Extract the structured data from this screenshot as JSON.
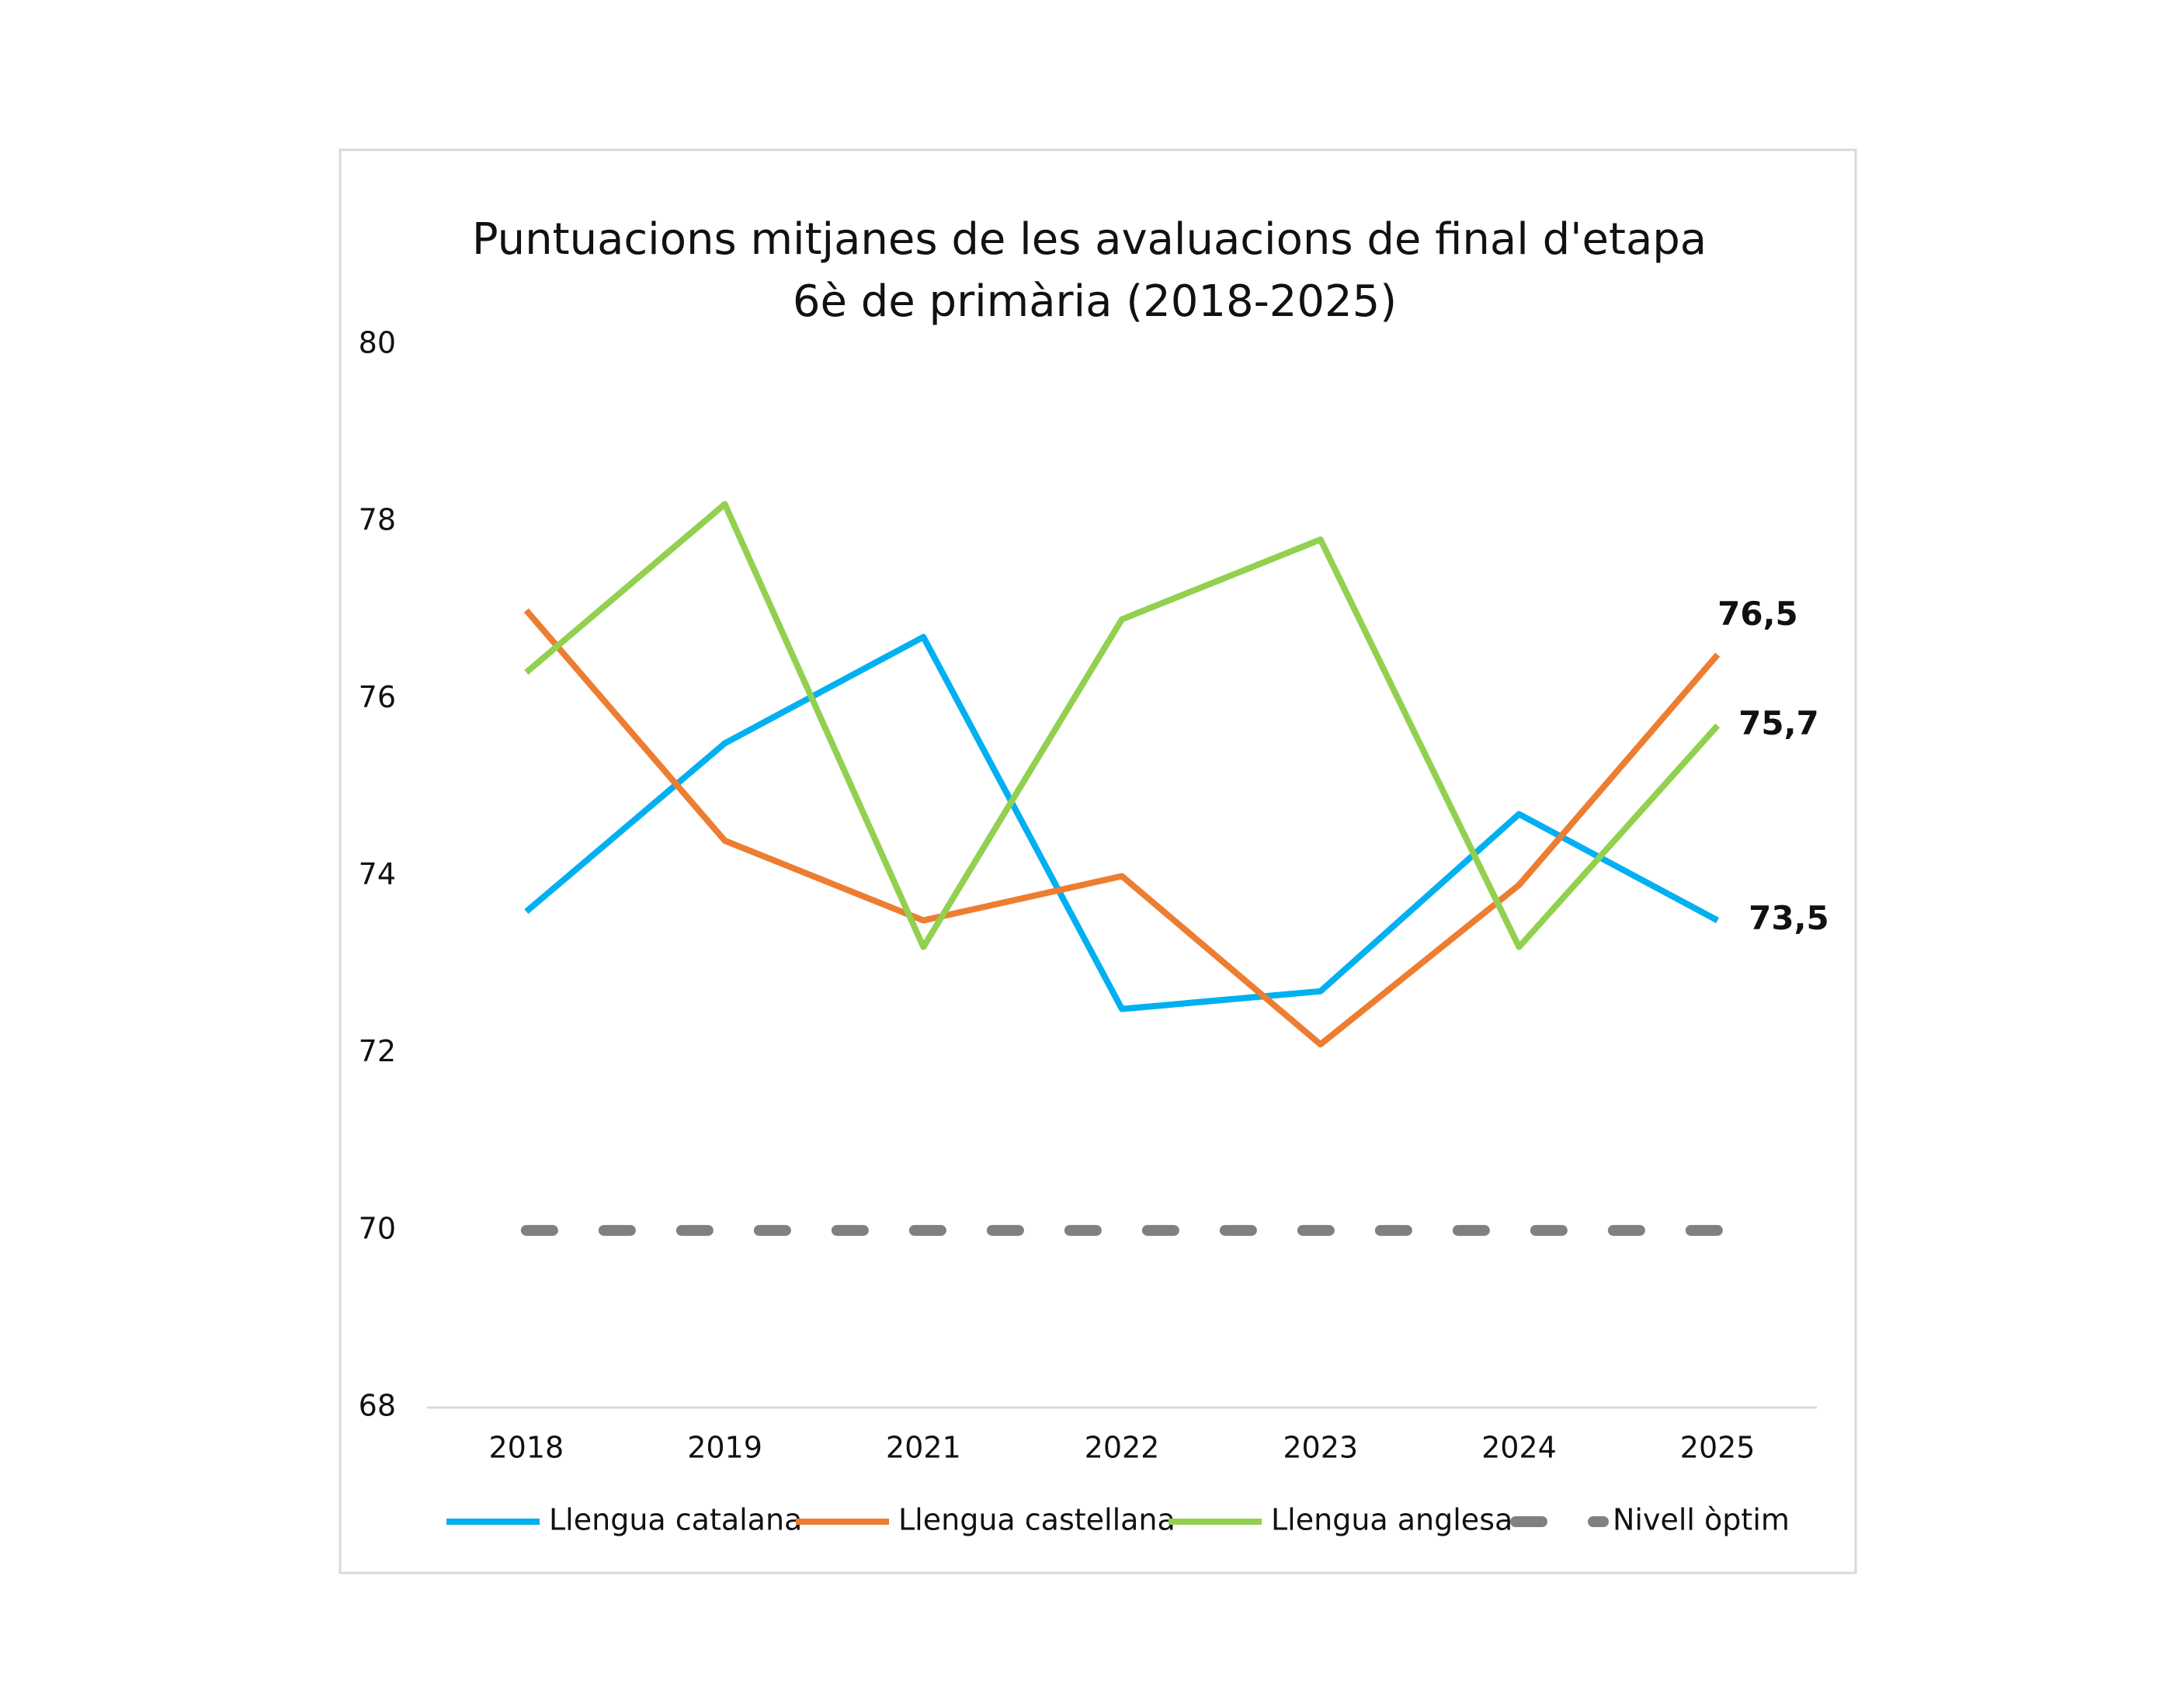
{
  "chart_data": {
    "type": "line",
    "title": "Puntuacions mitjanes de les avaluacions de final d'etapa",
    "subtitle": "6è de primària (2018-2025)",
    "categories": [
      "2018",
      "2019",
      "2021",
      "2022",
      "2023",
      "2024",
      "2025"
    ],
    "series": [
      {
        "name": "Llengua catalana",
        "color": "#00b0f0",
        "values": [
          73.6,
          75.5,
          76.7,
          72.5,
          72.7,
          74.7,
          73.5
        ],
        "value_labels": [
          null,
          null,
          null,
          null,
          null,
          null,
          "73,5"
        ]
      },
      {
        "name": "Llengua castellana",
        "color": "#ed7d31",
        "values": [
          77.0,
          74.4,
          73.5,
          74.0,
          72.1,
          73.9,
          76.5
        ],
        "value_labels": [
          null,
          null,
          null,
          null,
          null,
          null,
          "76,5"
        ]
      },
      {
        "name": "Llengua anglesa",
        "color": "#92d050",
        "values": [
          76.3,
          78.2,
          73.2,
          76.9,
          77.8,
          73.2,
          75.7
        ],
        "value_labels": [
          null,
          null,
          null,
          null,
          null,
          null,
          "75,7"
        ]
      },
      {
        "name": "Nivell òptim",
        "color": "#808080",
        "dashed": true,
        "values": [
          70,
          70,
          70,
          70,
          70,
          70,
          70
        ]
      }
    ],
    "ylim": [
      68,
      80
    ],
    "yticks": [
      68,
      70,
      72,
      74,
      76,
      78,
      80
    ],
    "grid": false
  }
}
